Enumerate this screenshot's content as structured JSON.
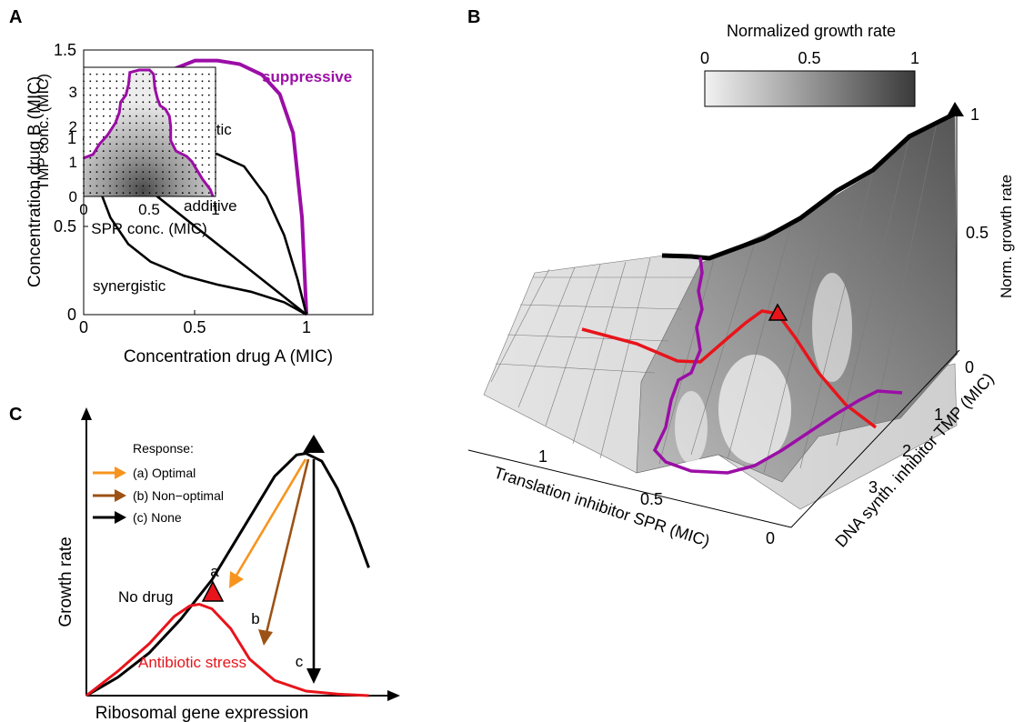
{
  "figure": {
    "panels": [
      {
        "letter": "A"
      },
      {
        "letter": "B"
      },
      {
        "letter": "C"
      }
    ]
  },
  "chart_data": [
    {
      "panel": "A",
      "type": "line",
      "xlabel": "Concentration drug A (MIC)",
      "ylabel": "Concentration drug B (MIC)",
      "xlim": [
        0,
        1.3
      ],
      "ylim": [
        0,
        1.5
      ],
      "xticks": [
        0,
        0.5,
        1
      ],
      "yticks": [
        0,
        0.5,
        1,
        1.5
      ],
      "grid": false,
      "series": [
        {
          "name": "suppressive",
          "color": "#9b0ea6",
          "points": [
            [
              0,
              1
            ],
            [
              0.08,
              1.0
            ],
            [
              0.14,
              1.02
            ],
            [
              0.2,
              1.1
            ],
            [
              0.3,
              1.28
            ],
            [
              0.4,
              1.39
            ],
            [
              0.5,
              1.44
            ],
            [
              0.6,
              1.44
            ],
            [
              0.7,
              1.42
            ],
            [
              0.8,
              1.36
            ],
            [
              0.88,
              1.25
            ],
            [
              0.94,
              1.03
            ],
            [
              0.98,
              0.55
            ],
            [
              1.0,
              0
            ]
          ]
        },
        {
          "name": "antagonistic",
          "color": "#000000",
          "points": [
            [
              0,
              1
            ],
            [
              0.2,
              0.97
            ],
            [
              0.4,
              0.95
            ],
            [
              0.6,
              0.91
            ],
            [
              0.72,
              0.84
            ],
            [
              0.82,
              0.67
            ],
            [
              0.9,
              0.45
            ],
            [
              0.96,
              0.2
            ],
            [
              1.0,
              0
            ]
          ]
        },
        {
          "name": "additive",
          "color": "#000000",
          "points": [
            [
              0,
              1
            ],
            [
              1,
              0
            ]
          ]
        },
        {
          "name": "synergistic",
          "color": "#000000",
          "points": [
            [
              0,
              1
            ],
            [
              0.05,
              0.78
            ],
            [
              0.12,
              0.55
            ],
            [
              0.2,
              0.4
            ],
            [
              0.3,
              0.3
            ],
            [
              0.45,
              0.22
            ],
            [
              0.6,
              0.17
            ],
            [
              0.75,
              0.13
            ],
            [
              0.9,
              0.07
            ],
            [
              1.0,
              0
            ]
          ]
        }
      ]
    },
    {
      "panel": "B",
      "type": "heatmap",
      "zlabel": "Norm. growth rate",
      "xlabel": "Translation inhibitor SPR (MIC)",
      "ylabel": "DNA synth. inhibitor TMP (MIC)",
      "x_ticks": [
        "1",
        "0.5",
        "0"
      ],
      "y_ticks": [
        "0",
        "1",
        "2",
        "3"
      ],
      "z_ticks": [
        "0.5",
        "1"
      ],
      "colorbar": {
        "title": "Normalized growth rate",
        "ticks": [
          "0",
          "0.5",
          "1"
        ],
        "range": [
          0,
          1
        ]
      },
      "inset": {
        "xlabel": "SPR conc. (MIC)",
        "ylabel": "TMP conc. (MIC)",
        "xticks": [
          0,
          0.5,
          1
        ],
        "yticks": [
          0,
          1,
          2,
          3
        ],
        "xlim": [
          0,
          1
        ],
        "ylim": [
          0,
          3.7
        ],
        "contour_color": "#9b0ea6",
        "contour": [
          [
            0,
            1.1
          ],
          [
            0.07,
            1.2
          ],
          [
            0.12,
            1.5
          ],
          [
            0.18,
            1.75
          ],
          [
            0.24,
            2.1
          ],
          [
            0.27,
            2.4
          ],
          [
            0.28,
            2.7
          ],
          [
            0.32,
            2.9
          ],
          [
            0.34,
            3.2
          ],
          [
            0.35,
            3.55
          ],
          [
            0.42,
            3.62
          ],
          [
            0.5,
            3.62
          ],
          [
            0.53,
            3.5
          ],
          [
            0.54,
            3.1
          ],
          [
            0.56,
            2.8
          ],
          [
            0.58,
            2.6
          ],
          [
            0.62,
            2.5
          ],
          [
            0.65,
            2.3
          ],
          [
            0.66,
            2.0
          ],
          [
            0.66,
            1.6
          ],
          [
            0.7,
            1.3
          ],
          [
            0.78,
            1.15
          ],
          [
            0.82,
            1.0
          ],
          [
            0.86,
            0.75
          ],
          [
            0.9,
            0.5
          ],
          [
            0.96,
            0.2
          ],
          [
            0.98,
            0
          ]
        ]
      }
    },
    {
      "panel": "C",
      "type": "line",
      "xlabel": "Ribosomal gene expression",
      "ylabel": "Growth rate",
      "legend_title": "Response:",
      "legend": [
        {
          "label": "(a) Optimal",
          "color": "#f7941d"
        },
        {
          "label": "(b) Non−optimal",
          "color": "#9c5215"
        },
        {
          "label": "(c) None",
          "color": "#000000"
        }
      ],
      "series": [
        {
          "name": "No drug",
          "color": "#000000",
          "points": [
            [
              0,
              0
            ],
            [
              0.1,
              0.06
            ],
            [
              0.2,
              0.14
            ],
            [
              0.3,
              0.25
            ],
            [
              0.4,
              0.38
            ],
            [
              0.5,
              0.55
            ],
            [
              0.6,
              0.72
            ],
            [
              0.67,
              0.79
            ],
            [
              0.7,
              0.795
            ],
            [
              0.75,
              0.77
            ],
            [
              0.8,
              0.68
            ],
            [
              0.85,
              0.56
            ],
            [
              0.9,
              0.42
            ]
          ]
        },
        {
          "name": "Antibiotic stress",
          "color": "#e8141b",
          "points": [
            [
              0,
              0
            ],
            [
              0.1,
              0.08
            ],
            [
              0.2,
              0.17
            ],
            [
              0.28,
              0.26
            ],
            [
              0.33,
              0.295
            ],
            [
              0.36,
              0.3
            ],
            [
              0.4,
              0.285
            ],
            [
              0.46,
              0.22
            ],
            [
              0.52,
              0.12
            ],
            [
              0.6,
              0.05
            ],
            [
              0.7,
              0.015
            ],
            [
              0.8,
              0.005
            ],
            [
              0.9,
              0.0
            ]
          ]
        }
      ],
      "annotations": [
        "a",
        "b",
        "c"
      ]
    }
  ]
}
